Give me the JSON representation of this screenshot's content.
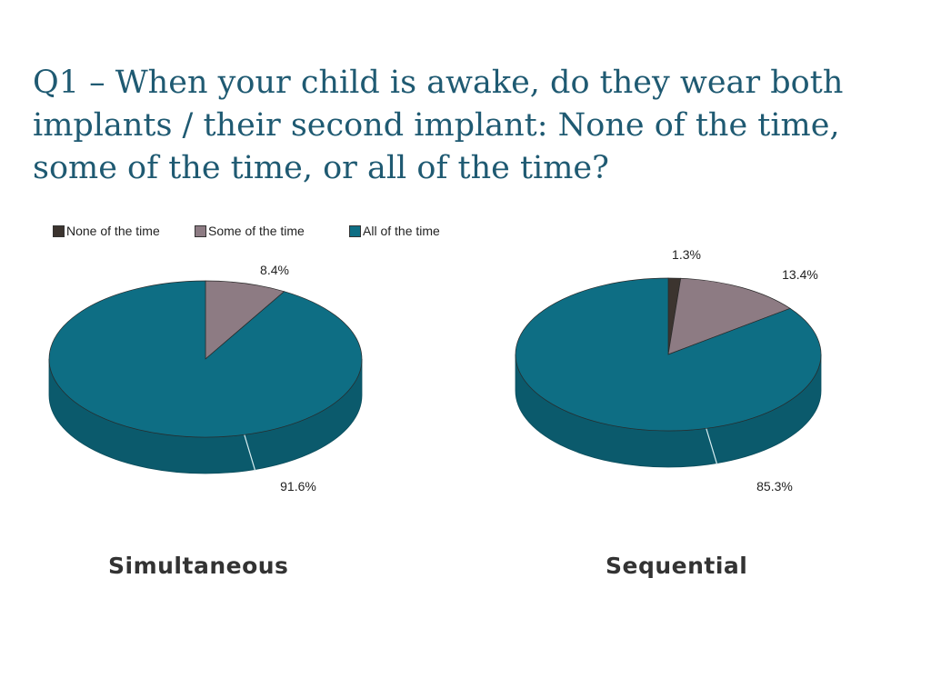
{
  "slide": {
    "title": "Q1 – When your child is awake, do they wear both implants / their second implant: None of the time, some of the time, or all of the time?"
  },
  "legend": {
    "items": [
      {
        "label": "None of the time",
        "color": "#3c342f"
      },
      {
        "label": "Some of the time",
        "color": "#8d7b83"
      },
      {
        "label": "All of the time",
        "color": "#0e6e84"
      }
    ]
  },
  "chart_data": [
    {
      "type": "pie",
      "title": "Simultaneous",
      "categories": [
        "None of the time",
        "Some of the time",
        "All of the time"
      ],
      "values": [
        0,
        8.4,
        91.6
      ],
      "labels": [
        "",
        "8.4%",
        "91.6%"
      ],
      "colors": [
        "#3c342f",
        "#8d7b83",
        "#0e6e84"
      ],
      "style": "3d"
    },
    {
      "type": "pie",
      "title": "Sequential",
      "categories": [
        "None of the time",
        "Some of the time",
        "All of the time"
      ],
      "values": [
        1.3,
        13.4,
        85.3
      ],
      "labels": [
        "1.3%",
        "13.4%",
        "85.3%"
      ],
      "colors": [
        "#3c342f",
        "#8d7b83",
        "#0e6e84"
      ],
      "style": "3d"
    }
  ]
}
